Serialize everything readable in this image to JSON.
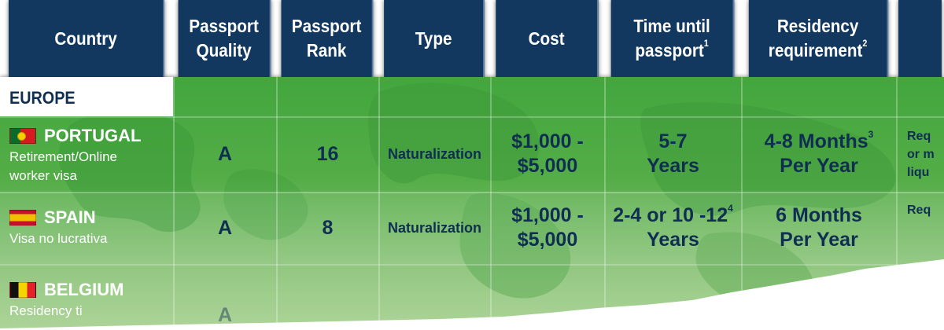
{
  "headers": {
    "country": "Country",
    "quality_1": "Passport",
    "quality_2": "Quality",
    "rank_1": "Passport",
    "rank_2": "Rank",
    "type": "Type",
    "cost": "Cost",
    "time_1": "Time until",
    "time_2": "passport",
    "time_note": "1",
    "residency_1": "Residency",
    "residency_2": "requirement",
    "residency_note": "2"
  },
  "region": "EUROPE",
  "rows": [
    {
      "country": "PORTUGAL",
      "program_1": "Retirement/Online",
      "program_2": "worker visa",
      "quality": "A",
      "rank": "16",
      "type": "Naturalization",
      "cost_1": "$1,000 -",
      "cost_2": "$5,000",
      "time_1": "5-7",
      "time_2": "Years",
      "time_note": "",
      "residency_1": "4-8 Months",
      "residency_note": "3",
      "residency_2": "Per Year",
      "edge_1": "Req",
      "edge_2": "or m",
      "edge_3": "liqu"
    },
    {
      "country": "SPAIN",
      "program_1": "Visa no lucrativa",
      "quality": "A",
      "rank": "8",
      "type": "Naturalization",
      "cost_1": "$1,000 -",
      "cost_2": "$5,000",
      "time_1": "2-4 or 10 -12",
      "time_note": "4",
      "time_2": "Years",
      "residency_1": "6 Months",
      "residency_2": "Per Year",
      "edge_1": "Req"
    },
    {
      "country": "BELGIUM",
      "program_1": "Residency ti",
      "quality": "A"
    }
  ]
}
